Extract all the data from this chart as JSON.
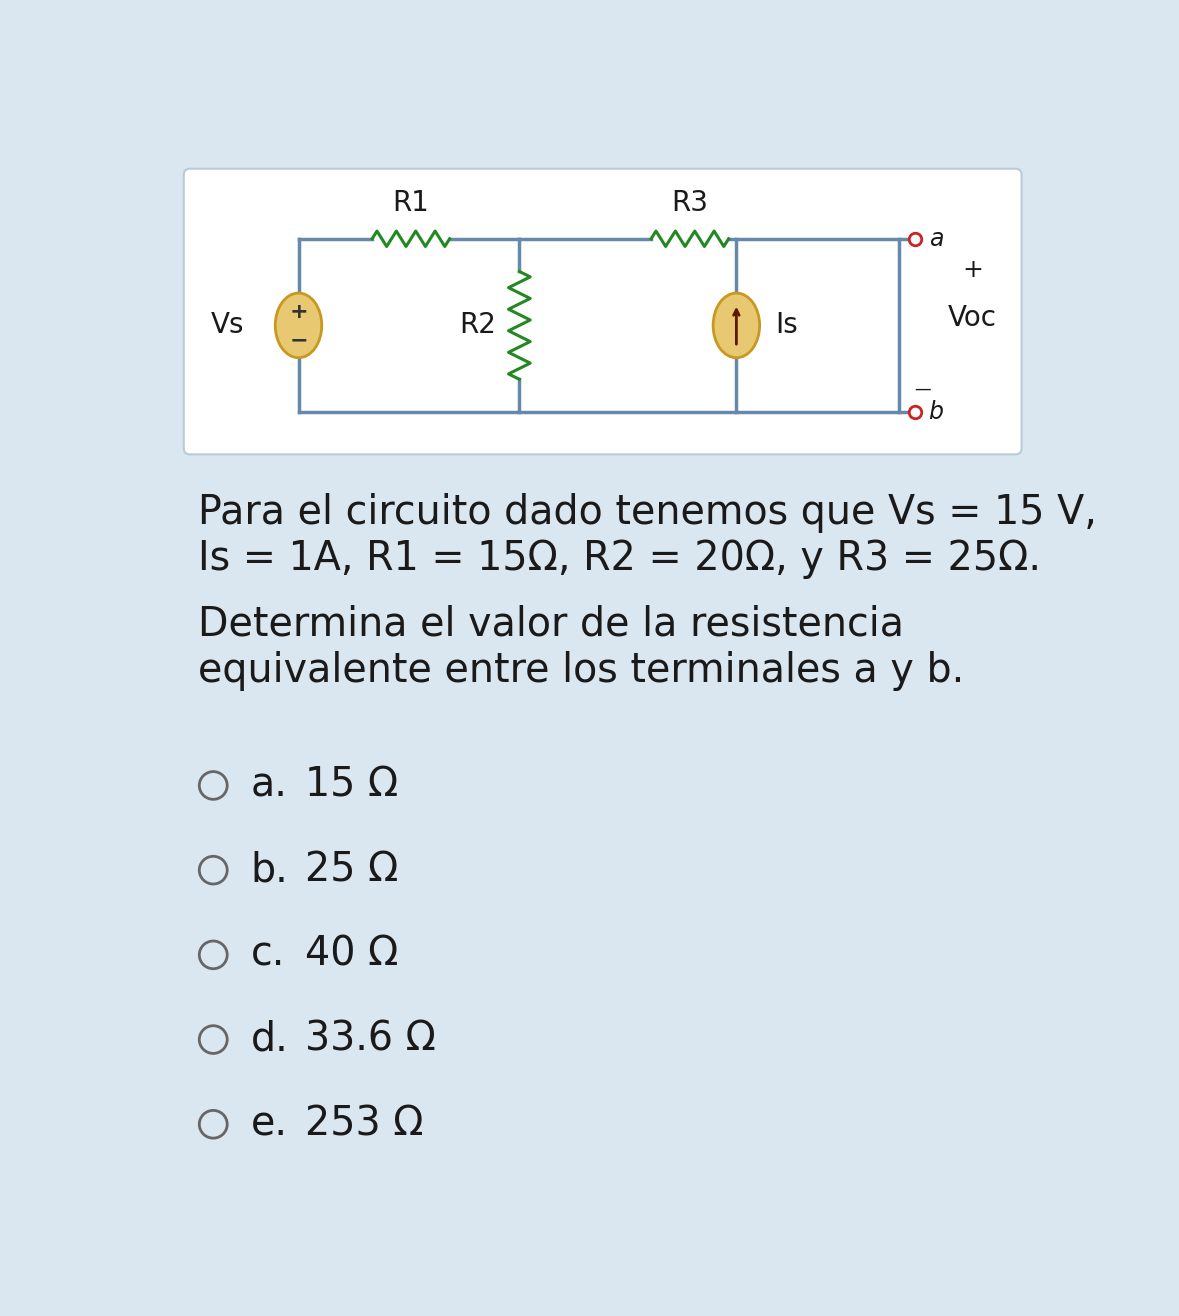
{
  "bg_color": "#dae6f0",
  "circuit_bg": "#ffffff",
  "wire_color": "#6688aa",
  "resistor_color": "#228822",
  "source_fill": "#e8c870",
  "source_edge": "#c89820",
  "terminal_color": "#cc2222",
  "text_color": "#1a1a1a",
  "paragraph_text1": "Para el circuito dado tenemos que Vs = 15 V,",
  "paragraph_text2": "Is = 1A, R1 = 15Ω, R2 = 20Ω, y R3 = 25Ω.",
  "paragraph_text3": "Determina el valor de la resistencia",
  "paragraph_text4": "equivalente entre los terminales a y b.",
  "options": [
    {
      "label": "a.",
      "value": "15 Ω"
    },
    {
      "label": "b.",
      "value": "25 Ω"
    },
    {
      "label": "c.",
      "value": "40 Ω"
    },
    {
      "label": "d.",
      "value": "33.6 Ω"
    },
    {
      "label": "e.",
      "value": "253 Ω"
    }
  ],
  "figw": 11.79,
  "figh": 13.16,
  "dpi": 100
}
